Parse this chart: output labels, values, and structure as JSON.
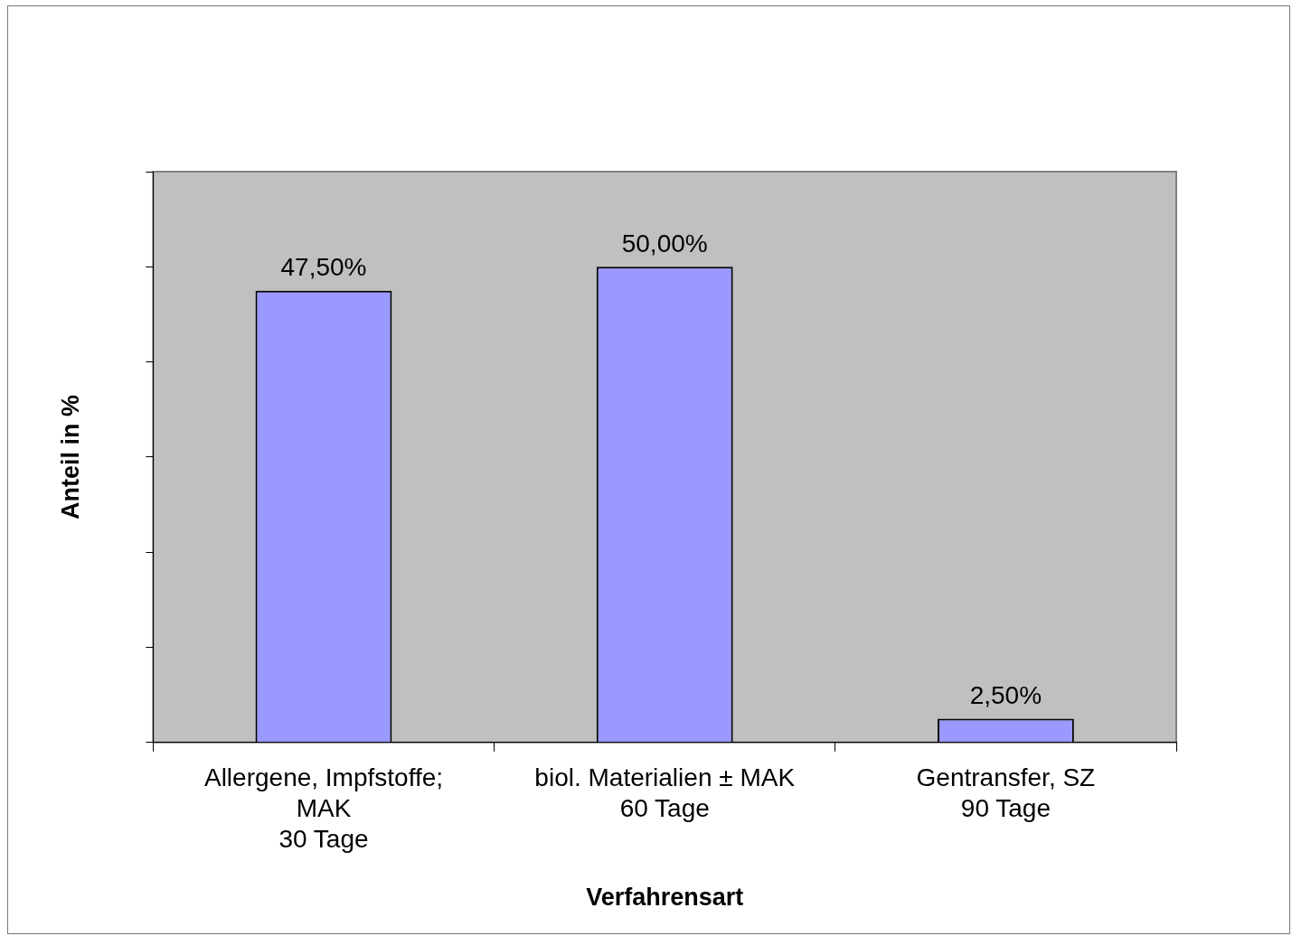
{
  "chart_data": {
    "type": "bar",
    "xlabel": "Verfahrensart",
    "ylabel": "Anteil in %",
    "categories": [
      "Allergene, Impfstoffe;\nMAK\n30 Tage",
      "biol. Materialien ± MAK\n60 Tage",
      "Gentransfer, SZ\n90 Tage"
    ],
    "values": [
      47.5,
      50,
      2.5
    ],
    "value_labels": [
      "47,50%",
      "50,00%",
      "2,50%"
    ],
    "color": "#9999ff",
    "ylim": [
      0,
      60
    ],
    "yticks": [
      {
        "value": 0,
        "label": null
      },
      {
        "value": 10,
        "label": null
      },
      {
        "value": 20,
        "label": null
      },
      {
        "value": 30,
        "label": null
      },
      {
        "value": 40,
        "label": null
      },
      {
        "value": 50,
        "label": null
      },
      {
        "value": 60,
        "label": null
      }
    ],
    "tick_labels": "x",
    "grid": false,
    "legend": false
  }
}
